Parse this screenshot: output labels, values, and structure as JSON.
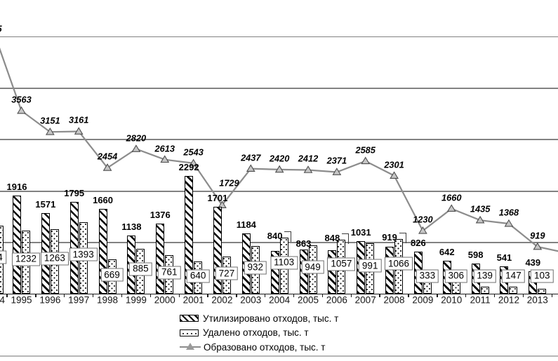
{
  "chart_data": {
    "type": "bar",
    "subtype": "grouped-bars-with-line-overlay",
    "categories": [
      "1995",
      "1996",
      "1997",
      "1998",
      "1999",
      "2000",
      "2001",
      "2002",
      "2003",
      "2004",
      "2005",
      "2006",
      "2007",
      "2008",
      "2009",
      "2010",
      "2011",
      "2012",
      "2013"
    ],
    "series": [
      {
        "name": "Утилизировано отходов, тыс. т",
        "type": "bar",
        "pattern": "diagonal-hatch",
        "values": [
          1916,
          1571,
          1795,
          1660,
          1138,
          1376,
          2292,
          1701,
          1184,
          840,
          863,
          848,
          1031,
          919,
          826,
          642,
          598,
          541,
          439
        ]
      },
      {
        "name": "Удалено отходов, тыс. т",
        "type": "bar",
        "pattern": "dotted",
        "values": [
          1232,
          1263,
          1393,
          669,
          885,
          761,
          640,
          727,
          932,
          1103,
          949,
          1057,
          991,
          1066,
          333,
          306,
          139,
          147,
          103
        ]
      },
      {
        "name": "Образовано отходов, тыс. т",
        "type": "line",
        "marker": "triangle",
        "values": [
          3563,
          3151,
          3161,
          2454,
          2820,
          2613,
          2543,
          1729,
          2437,
          2420,
          2412,
          2371,
          2585,
          2301,
          1230,
          1660,
          1435,
          1368,
          919
        ]
      }
    ],
    "title": "",
    "xlabel": "",
    "ylabel": "",
    "ylim": [
      0,
      5000
    ],
    "gridline_step": 1000,
    "grid": "horizontal",
    "legend_position": "bottom",
    "cropped_left_category": {
      "year_label_fragment": "1994",
      "box_label_fragment": "4",
      "line_label_fragment": "5"
    }
  },
  "colors": {
    "background": "#ffffff",
    "gridline": "#828282",
    "axis": "#1a1a1a",
    "bar_border": "#000000",
    "line_series": "#8c8c8c",
    "marker_fill": "#c6c6c6",
    "marker_stroke": "#4d4d4d",
    "label_box_border": "#6f6f6f",
    "bottom_rule": "#b7b7b7"
  }
}
